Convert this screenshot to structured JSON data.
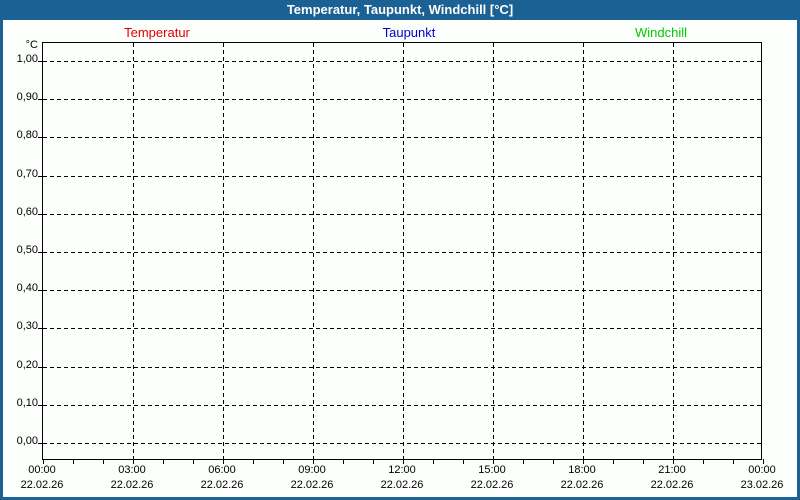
{
  "window": {
    "title": "Temperatur, Taupunkt, Windchill [°C]"
  },
  "theme": {
    "titlebar_color": "#1C6194",
    "background_color": "#FDFFFD",
    "grid_color": "#000000"
  },
  "chart_data": {
    "type": "line",
    "title": "Temperatur, Taupunkt, Windchill [°C]",
    "y_unit": "°C",
    "ylim": [
      0.0,
      1.0
    ],
    "y_tick_labels": [
      "1,00",
      "0,90",
      "0,80",
      "0,70",
      "0,60",
      "0,50",
      "0,40",
      "0,30",
      "0,20",
      "0,10",
      "0,00"
    ],
    "y_tick_values": [
      1.0,
      0.9,
      0.8,
      0.7,
      0.6,
      0.5,
      0.4,
      0.3,
      0.2,
      0.1,
      0.0
    ],
    "x_ticks": [
      {
        "time": "00:00",
        "date": "22.02.26"
      },
      {
        "time": "03:00",
        "date": "22.02.26"
      },
      {
        "time": "06:00",
        "date": "22.02.26"
      },
      {
        "time": "09:00",
        "date": "22.02.26"
      },
      {
        "time": "12:00",
        "date": "22.02.26"
      },
      {
        "time": "15:00",
        "date": "22.02.26"
      },
      {
        "time": "18:00",
        "date": "22.02.26"
      },
      {
        "time": "21:00",
        "date": "22.02.26"
      },
      {
        "time": "00:00",
        "date": "23.02.26"
      }
    ],
    "x_minor_ticks_per_interval": 3,
    "grid": "dashed",
    "legend_position": "top",
    "series": [
      {
        "name": "Temperatur",
        "color": "#E00000",
        "values": []
      },
      {
        "name": "Taupunkt",
        "color": "#0000C8",
        "values": []
      },
      {
        "name": "Windchill",
        "color": "#00C800",
        "values": []
      }
    ],
    "plotted_points": "none — chart area is empty"
  }
}
